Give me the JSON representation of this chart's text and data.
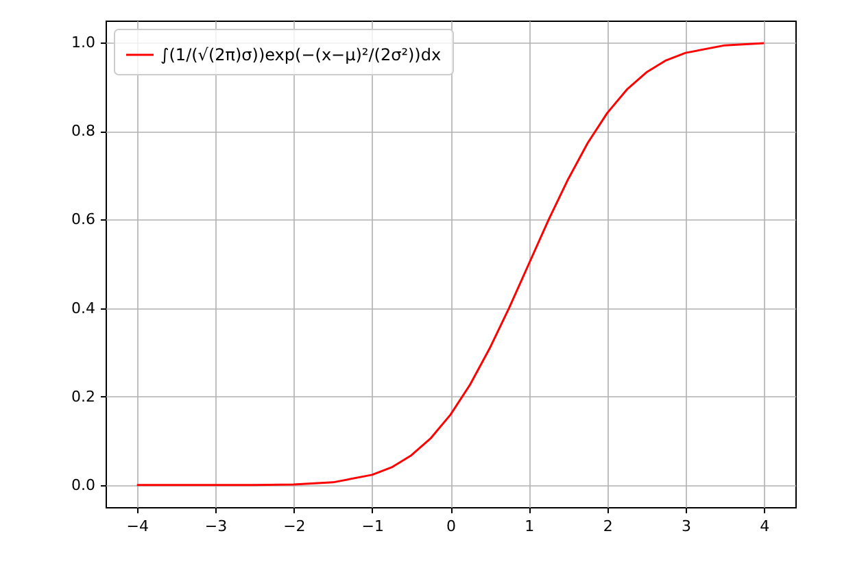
{
  "chart_data": {
    "type": "line",
    "x": [
      -4,
      -3.5,
      -3,
      -2.5,
      -2,
      -1.5,
      -1,
      -0.75,
      -0.5,
      -0.25,
      0,
      0.25,
      0.5,
      0.75,
      1,
      1.25,
      1.5,
      1.75,
      2,
      2.25,
      2.5,
      2.75,
      3,
      3.5,
      4
    ],
    "series": [
      {
        "name": "∫(1/(√(2π)σ))exp(−(x−μ)²/(2σ²))dx",
        "color": "#ff0000",
        "values": [
          0,
          0,
          0,
          0,
          0.001,
          0.006,
          0.023,
          0.04,
          0.067,
          0.106,
          0.159,
          0.227,
          0.309,
          0.401,
          0.5,
          0.599,
          0.691,
          0.773,
          0.841,
          0.894,
          0.933,
          0.96,
          0.977,
          0.994,
          0.999
        ]
      }
    ],
    "xlim": [
      -4.4,
      4.4
    ],
    "xticks": [
      {
        "value": -4,
        "label": "−4"
      },
      {
        "value": -3,
        "label": "−3"
      },
      {
        "value": -2,
        "label": "−2"
      },
      {
        "value": -1,
        "label": "−1"
      },
      0,
      1,
      2,
      3,
      4
    ],
    "ylim": [
      -0.05,
      1.05
    ],
    "yticks": [
      {
        "value": 0,
        "label": "0.0"
      },
      {
        "value": 0.2,
        "label": "0.2"
      },
      {
        "value": 0.4,
        "label": "0.4"
      },
      {
        "value": 0.6,
        "label": "0.6"
      },
      {
        "value": 0.8,
        "label": "0.8"
      },
      {
        "value": 1,
        "label": "1.0"
      }
    ],
    "grid": true,
    "legend": "top left",
    "marker": "none",
    "line_style": "solid"
  }
}
